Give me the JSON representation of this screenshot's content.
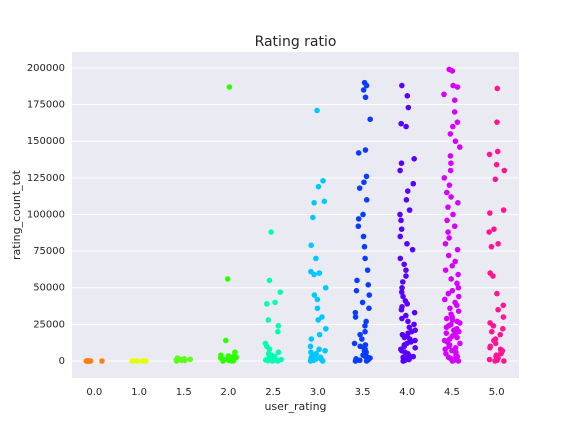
{
  "chart_data": {
    "type": "strip",
    "title": "Rating ratio",
    "x_label": "user_rating",
    "y_label": "rating_count_tot",
    "categories": [
      "0.0",
      "1.0",
      "1.5",
      "2.0",
      "2.5",
      "3.0",
      "3.5",
      "4.0",
      "4.5",
      "5.0"
    ],
    "colors": [
      "#ff7f0e",
      "#e6ff00",
      "#5cff1c",
      "#2eff00",
      "#00ffb0",
      "#00c8ff",
      "#0a3cff",
      "#5a00ff",
      "#d600ff",
      "#ff1493"
    ],
    "values": [
      [
        0,
        0,
        0,
        0,
        0,
        0,
        0,
        0
      ],
      [
        0,
        0,
        0,
        0,
        0,
        0
      ],
      [
        0,
        300,
        500,
        1000,
        1500,
        2000,
        800,
        1200
      ],
      [
        187000,
        56000,
        14000,
        6000,
        4000,
        3000,
        2000,
        1500,
        1000,
        500,
        200,
        0,
        2500,
        3500,
        800,
        0,
        300
      ],
      [
        88000,
        55000,
        47000,
        40000,
        39000,
        28000,
        24000,
        20000,
        12000,
        10000,
        8000,
        6000,
        5000,
        4000,
        3000,
        2000,
        1500,
        1000,
        500,
        200,
        0,
        0,
        700,
        2500,
        3500
      ],
      [
        171000,
        123000,
        119000,
        109000,
        108000,
        98000,
        79000,
        70000,
        61000,
        60000,
        59000,
        50000,
        45000,
        42000,
        36000,
        30000,
        28000,
        22000,
        18000,
        15000,
        10000,
        8000,
        6000,
        5000,
        4000,
        3000,
        2000,
        1000,
        500,
        0,
        0,
        1500,
        2500,
        7000
      ],
      [
        190000,
        188000,
        185000,
        180000,
        165000,
        144000,
        142000,
        126000,
        122000,
        118000,
        110000,
        100000,
        97000,
        92000,
        85000,
        78000,
        70000,
        62000,
        55000,
        52000,
        48000,
        45000,
        40000,
        36000,
        33000,
        30000,
        27000,
        24000,
        20000,
        18000,
        15000,
        12000,
        10000,
        8000,
        6000,
        5000,
        4000,
        3000,
        2000,
        1000,
        500,
        0,
        0,
        1500,
        2500,
        7000,
        9000,
        11000
      ],
      [
        188000,
        181000,
        173000,
        162000,
        160000,
        138000,
        135000,
        130000,
        121000,
        116000,
        110000,
        103000,
        100000,
        96000,
        90000,
        85000,
        80000,
        76000,
        70000,
        66000,
        62000,
        58000,
        54000,
        50000,
        47000,
        44000,
        41000,
        39000,
        37000,
        35000,
        33000,
        31000,
        29000,
        27000,
        25000,
        23000,
        21000,
        19000,
        17000,
        15000,
        13000,
        11000,
        9000,
        7000,
        5000,
        4000,
        3000,
        2000,
        1000,
        500,
        0,
        0,
        1500,
        2500,
        6000,
        8000,
        10000,
        12000,
        14000,
        16000,
        18000,
        20000
      ],
      [
        199000,
        198000,
        188000,
        187000,
        182000,
        178000,
        170000,
        163000,
        160000,
        155000,
        150000,
        146000,
        140000,
        135000,
        130000,
        125000,
        120000,
        115000,
        112000,
        108000,
        105000,
        100000,
        96000,
        92000,
        88000,
        84000,
        80000,
        76000,
        72000,
        68000,
        65000,
        62000,
        59000,
        56000,
        53000,
        50000,
        48000,
        46000,
        44000,
        42000,
        40000,
        38000,
        36000,
        34000,
        32000,
        30000,
        28000,
        26000,
        24000,
        22000,
        20000,
        18000,
        16000,
        14000,
        12000,
        10000,
        9000,
        8000,
        7000,
        6000,
        5000,
        4000,
        3000,
        2000,
        1000,
        500,
        0,
        0,
        1500,
        2500,
        11000,
        13000,
        15000,
        17000,
        19000,
        21000,
        23000,
        25000,
        27000,
        29000
      ],
      [
        186000,
        163000,
        143000,
        141000,
        134000,
        130000,
        124000,
        103000,
        101000,
        90000,
        88000,
        80000,
        78000,
        60000,
        58000,
        46000,
        38000,
        35000,
        30000,
        26000,
        22000,
        18000,
        15000,
        12000,
        10000,
        8000,
        6000,
        4000,
        2000,
        1000,
        0,
        0,
        500,
        3000,
        5000,
        7000,
        9000,
        14000,
        20000,
        24000
      ]
    ],
    "ylim": [
      -11600,
      210900
    ],
    "yticks": [
      0,
      25000,
      50000,
      75000,
      100000,
      125000,
      150000,
      175000,
      200000
    ],
    "grid": true
  }
}
